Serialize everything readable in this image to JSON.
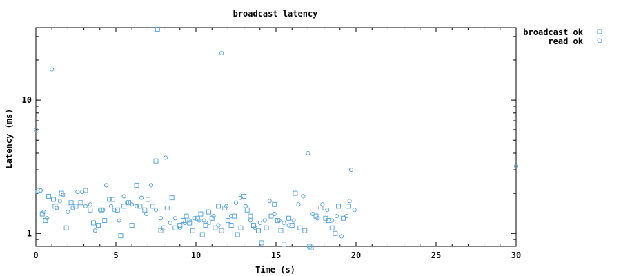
{
  "chart_data": {
    "type": "scatter",
    "title": "broadcast latency",
    "xlabel": "Time (s)",
    "ylabel": "Latency (ms)",
    "xlim": [
      0,
      30
    ],
    "ylim": [
      0.8,
      35
    ],
    "yscale": "log",
    "x_ticks": [
      0,
      5,
      10,
      15,
      20,
      25,
      30
    ],
    "x_tick_labels": [
      "0",
      "5",
      "10",
      "15",
      "20",
      "25",
      "30"
    ],
    "y_ticks": [
      1,
      10
    ],
    "y_tick_labels": [
      "1",
      "10"
    ],
    "legend_position": "top-right outside",
    "series": [
      {
        "name": "broadcast ok",
        "marker": "square",
        "color": "#5aa7df",
        "points": [
          [
            0.2,
            2.1
          ],
          [
            0.4,
            1.4
          ],
          [
            0.6,
            1.25
          ],
          [
            0.8,
            1.9
          ],
          [
            1.1,
            1.8
          ],
          [
            1.2,
            1.6
          ],
          [
            1.6,
            2.0
          ],
          [
            1.9,
            1.1
          ],
          [
            2.2,
            1.7
          ],
          [
            2.5,
            1.6
          ],
          [
            2.8,
            1.7
          ],
          [
            3.1,
            2.1
          ],
          [
            3.4,
            1.5
          ],
          [
            3.6,
            1.2
          ],
          [
            3.9,
            1.15
          ],
          [
            4.1,
            1.5
          ],
          [
            4.3,
            1.25
          ],
          [
            4.6,
            1.8
          ],
          [
            4.8,
            1.8
          ],
          [
            5.1,
            1.5
          ],
          [
            5.3,
            0.96
          ],
          [
            5.5,
            1.6
          ],
          [
            5.8,
            1.7
          ],
          [
            6.0,
            1.15
          ],
          [
            6.3,
            2.3
          ],
          [
            6.5,
            1.6
          ],
          [
            6.8,
            1.5
          ],
          [
            7.0,
            1.8
          ],
          [
            7.3,
            1.6
          ],
          [
            7.5,
            3.5
          ],
          [
            7.6,
            34.0
          ],
          [
            7.8,
            1.05
          ],
          [
            8.0,
            1.1
          ],
          [
            8.2,
            1.55
          ],
          [
            8.5,
            1.85
          ],
          [
            8.7,
            1.1
          ],
          [
            9.0,
            1.15
          ],
          [
            9.2,
            1.25
          ],
          [
            9.4,
            1.35
          ],
          [
            9.6,
            1.2
          ],
          [
            9.8,
            1.05
          ],
          [
            10.1,
            1.3
          ],
          [
            10.3,
            1.4
          ],
          [
            10.4,
            0.98
          ],
          [
            10.6,
            1.15
          ],
          [
            10.8,
            1.45
          ],
          [
            11.0,
            1.3
          ],
          [
            11.2,
            1.1
          ],
          [
            11.4,
            1.6
          ],
          [
            11.6,
            1.05
          ],
          [
            11.8,
            1.55
          ],
          [
            12.0,
            1.25
          ],
          [
            12.2,
            1.15
          ],
          [
            12.4,
            1.35
          ],
          [
            12.6,
            0.98
          ],
          [
            12.8,
            1.1
          ],
          [
            13.0,
            1.9
          ],
          [
            13.2,
            1.5
          ],
          [
            13.4,
            1.35
          ],
          [
            13.6,
            1.15
          ],
          [
            13.9,
            1.05
          ],
          [
            14.1,
            0.85
          ],
          [
            14.4,
            1.1
          ],
          [
            14.7,
            1.35
          ],
          [
            14.9,
            1.65
          ],
          [
            15.1,
            1.25
          ],
          [
            15.3,
            1.05
          ],
          [
            15.5,
            0.83
          ],
          [
            15.8,
            1.3
          ],
          [
            16.0,
            1.15
          ],
          [
            16.2,
            2.0
          ],
          [
            16.5,
            1.1
          ],
          [
            16.8,
            1.05
          ],
          [
            17.1,
            0.8
          ],
          [
            17.2,
            0.78
          ],
          [
            17.5,
            1.35
          ],
          [
            17.8,
            1.55
          ],
          [
            18.1,
            1.3
          ],
          [
            18.3,
            1.25
          ],
          [
            18.5,
            1.1
          ],
          [
            18.7,
            1.0
          ],
          [
            18.9,
            1.6
          ],
          [
            19.2,
            1.3
          ],
          [
            19.5,
            1.6
          ]
        ]
      },
      {
        "name": "read ok",
        "marker": "circle",
        "color": "#5aa7df",
        "points": [
          [
            0.0,
            6.0
          ],
          [
            0.1,
            2.05
          ],
          [
            0.3,
            2.1
          ],
          [
            0.5,
            1.45
          ],
          [
            0.7,
            1.3
          ],
          [
            1.0,
            17.0
          ],
          [
            1.3,
            1.55
          ],
          [
            1.5,
            1.75
          ],
          [
            1.7,
            1.95
          ],
          [
            2.0,
            1.45
          ],
          [
            2.3,
            1.55
          ],
          [
            2.6,
            2.05
          ],
          [
            2.9,
            2.05
          ],
          [
            3.1,
            1.6
          ],
          [
            3.4,
            1.65
          ],
          [
            3.7,
            1.05
          ],
          [
            4.0,
            1.5
          ],
          [
            4.2,
            1.5
          ],
          [
            4.4,
            2.3
          ],
          [
            4.7,
            1.6
          ],
          [
            4.9,
            1.5
          ],
          [
            5.2,
            1.25
          ],
          [
            5.5,
            1.9
          ],
          [
            5.7,
            1.7
          ],
          [
            6.0,
            1.65
          ],
          [
            6.3,
            1.6
          ],
          [
            6.6,
            1.85
          ],
          [
            6.9,
            1.4
          ],
          [
            7.2,
            2.3
          ],
          [
            7.5,
            1.5
          ],
          [
            7.8,
            1.3
          ],
          [
            8.1,
            3.7
          ],
          [
            8.4,
            1.2
          ],
          [
            8.7,
            1.3
          ],
          [
            9.0,
            1.1
          ],
          [
            9.3,
            1.2
          ],
          [
            9.6,
            1.25
          ],
          [
            9.9,
            1.3
          ],
          [
            10.2,
            1.25
          ],
          [
            10.5,
            1.25
          ],
          [
            10.8,
            1.2
          ],
          [
            11.1,
            1.35
          ],
          [
            11.4,
            1.15
          ],
          [
            11.6,
            22.5
          ],
          [
            11.9,
            1.6
          ],
          [
            12.2,
            1.35
          ],
          [
            12.5,
            1.7
          ],
          [
            12.8,
            1.85
          ],
          [
            13.1,
            1.6
          ],
          [
            13.4,
            1.25
          ],
          [
            13.7,
            1.1
          ],
          [
            14.0,
            1.2
          ],
          [
            14.3,
            1.25
          ],
          [
            14.6,
            1.75
          ],
          [
            14.9,
            1.4
          ],
          [
            15.2,
            1.25
          ],
          [
            15.5,
            1.2
          ],
          [
            15.8,
            1.15
          ],
          [
            16.1,
            1.25
          ],
          [
            16.4,
            1.65
          ],
          [
            16.7,
            1.9
          ],
          [
            17.0,
            4.0
          ],
          [
            17.3,
            1.4
          ],
          [
            17.6,
            1.3
          ],
          [
            17.9,
            1.65
          ],
          [
            18.2,
            1.5
          ],
          [
            18.5,
            1.25
          ],
          [
            18.8,
            1.35
          ],
          [
            19.1,
            0.95
          ],
          [
            19.4,
            1.35
          ],
          [
            19.6,
            1.75
          ],
          [
            19.7,
            3.0
          ],
          [
            19.9,
            1.5
          ],
          [
            30.0,
            3.2
          ]
        ]
      }
    ]
  }
}
